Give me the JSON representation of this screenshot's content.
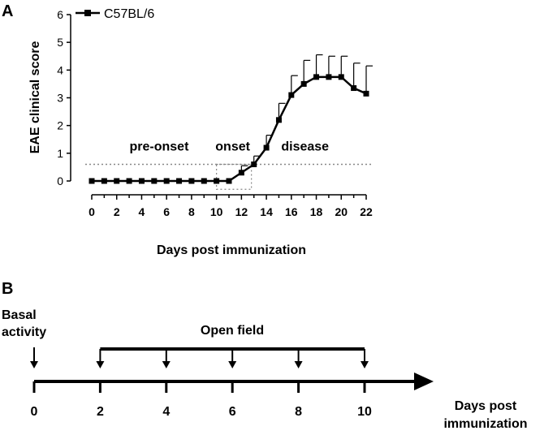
{
  "panels": {
    "a": {
      "label": "A"
    },
    "b": {
      "label": "B"
    }
  },
  "chart_data": {
    "type": "line",
    "title": "",
    "xlabel": "Days post immunization",
    "ylabel": "EAE clinical score",
    "xlim": [
      0,
      22
    ],
    "ylim": [
      0,
      6
    ],
    "xticks": [
      "0",
      "2",
      "4",
      "6",
      "8",
      "10",
      "12",
      "14",
      "16",
      "18",
      "20",
      "22"
    ],
    "yticks": [
      "0",
      "1",
      "2",
      "3",
      "4",
      "5",
      "6"
    ],
    "grid": false,
    "legend_position": "top-left",
    "series": [
      {
        "name": "C57BL/6",
        "color": "#000000",
        "marker": "square",
        "x": [
          0,
          1,
          2,
          3,
          4,
          5,
          6,
          7,
          8,
          9,
          10,
          11,
          12,
          13,
          14,
          15,
          16,
          17,
          18,
          19,
          20,
          21,
          22
        ],
        "y": [
          0,
          0,
          0,
          0,
          0,
          0,
          0,
          0,
          0,
          0,
          0,
          0,
          0.3,
          0.6,
          1.2,
          2.2,
          3.1,
          3.5,
          3.75,
          3.75,
          3.75,
          3.35,
          3.15
        ],
        "error": [
          0,
          0,
          0,
          0,
          0,
          0,
          0,
          0,
          0,
          0,
          0,
          0,
          0.25,
          0.3,
          0.45,
          0.6,
          0.7,
          0.85,
          0.8,
          0.75,
          0.75,
          0.9,
          1.0
        ]
      }
    ],
    "threshold_line": {
      "y": 0.6,
      "style": "dotted",
      "color": "#888888"
    },
    "onset_box": {
      "x": [
        10,
        12.8
      ],
      "y": [
        -0.3,
        0.6
      ],
      "style": "dotted"
    },
    "region_labels": [
      {
        "text": "pre-onset",
        "x": 5.4,
        "y": 1.25
      },
      {
        "text": "onset",
        "x": 11.3,
        "y": 1.25
      },
      {
        "text": "disease",
        "x": 17.1,
        "y": 1.25
      }
    ]
  },
  "timeline": {
    "basal_label_line1": "Basal",
    "basal_label_line2": "activity",
    "open_field_label": "Open field",
    "axis_label_line1": "Days post",
    "axis_label_line2": "immunization",
    "ticks": [
      "0",
      "2",
      "4",
      "6",
      "8",
      "10"
    ],
    "arrow_days": [
      2,
      4,
      6,
      8,
      10
    ]
  }
}
